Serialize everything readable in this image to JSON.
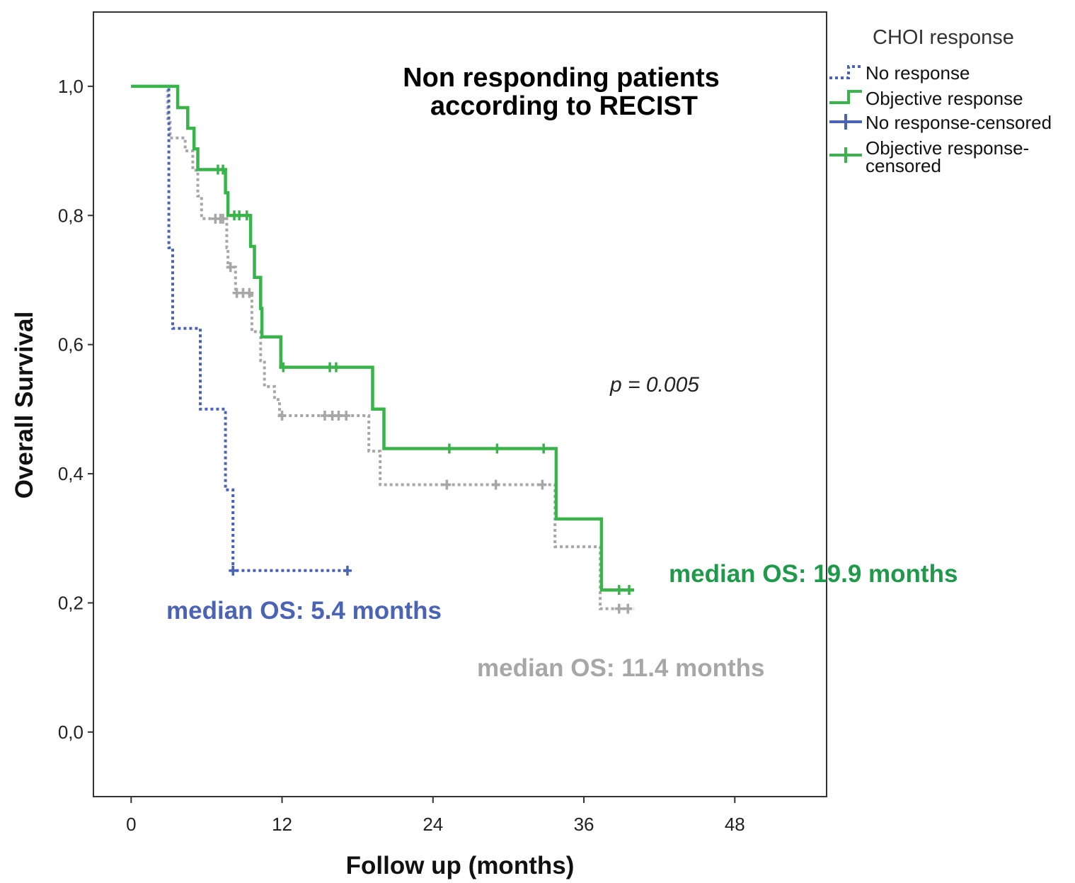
{
  "chart_data": {
    "type": "line",
    "subtype": "kaplan-meier",
    "title": "Non responding patients according to RECIST",
    "title_lines": [
      "Non responding patients",
      "according to RECIST"
    ],
    "xlabel": "Follow up (months)",
    "ylabel": "Overall Survival",
    "xlim": [
      -3,
      55.3
    ],
    "ylim": [
      -0.1,
      1.115
    ],
    "xticks": [
      0,
      12,
      24,
      36,
      48
    ],
    "xtick_labels": [
      "0",
      "12",
      "24",
      "36",
      "48"
    ],
    "yticks": [
      0,
      0.2,
      0.4,
      0.6,
      0.8,
      1.0
    ],
    "ytick_labels": [
      "0,0",
      "0,2",
      "0,4",
      "0,6",
      "0,8",
      "1,0"
    ],
    "grid": false,
    "legend": {
      "title": "CHOI response",
      "position": "right",
      "entries": [
        "No response",
        "Objective response",
        "No response-censored",
        "Objective response-censored"
      ],
      "entry_lines": [
        [
          "No response"
        ],
        [
          "Objective response"
        ],
        [
          "No response-censored"
        ],
        [
          "Objective response-",
          "censored"
        ]
      ]
    },
    "p_value": "p = 0.005",
    "series": [
      {
        "name": "No response",
        "color": "#4a63b5",
        "style": "dotted",
        "steps": [
          [
            0,
            1.0
          ],
          [
            3.0,
            1.0
          ],
          [
            3.0,
            0.875
          ],
          [
            3.0,
            0.75
          ],
          [
            3.3,
            0.75
          ],
          [
            3.3,
            0.625
          ],
          [
            5.5,
            0.625
          ],
          [
            5.5,
            0.5
          ],
          [
            7.5,
            0.5
          ],
          [
            7.5,
            0.375
          ],
          [
            8.1,
            0.375
          ],
          [
            8.1,
            0.25
          ],
          [
            17.2,
            0.25
          ]
        ],
        "censored": [
          [
            8.1,
            0.25
          ],
          [
            17.2,
            0.25
          ]
        ]
      },
      {
        "name": "Objective response",
        "color": "#38b44a",
        "style": "solid",
        "steps": [
          [
            0,
            1.0
          ],
          [
            3.7,
            1.0
          ],
          [
            3.7,
            0.967
          ],
          [
            4.5,
            0.967
          ],
          [
            4.5,
            0.935
          ],
          [
            5.0,
            0.935
          ],
          [
            5.0,
            0.903
          ],
          [
            5.3,
            0.903
          ],
          [
            5.3,
            0.871
          ],
          [
            7.5,
            0.871
          ],
          [
            7.5,
            0.835
          ],
          [
            7.7,
            0.835
          ],
          [
            7.7,
            0.8
          ],
          [
            9.5,
            0.8
          ],
          [
            9.5,
            0.752
          ],
          [
            9.8,
            0.752
          ],
          [
            9.8,
            0.704
          ],
          [
            10.3,
            0.704
          ],
          [
            10.3,
            0.656
          ],
          [
            10.4,
            0.656
          ],
          [
            10.4,
            0.612
          ],
          [
            11.9,
            0.612
          ],
          [
            11.9,
            0.565
          ],
          [
            19.2,
            0.565
          ],
          [
            19.2,
            0.5
          ],
          [
            20.1,
            0.5
          ],
          [
            20.1,
            0.439
          ],
          [
            33.8,
            0.439
          ],
          [
            33.8,
            0.33
          ],
          [
            37.4,
            0.33
          ],
          [
            37.4,
            0.22
          ],
          [
            40.0,
            0.22
          ]
        ],
        "censored": [
          [
            6.9,
            0.871
          ],
          [
            7.3,
            0.871
          ],
          [
            8.2,
            0.8
          ],
          [
            8.6,
            0.8
          ],
          [
            9.2,
            0.8
          ],
          [
            12.1,
            0.565
          ],
          [
            15.8,
            0.565
          ],
          [
            16.3,
            0.565
          ],
          [
            25.3,
            0.439
          ],
          [
            29.1,
            0.439
          ],
          [
            32.8,
            0.439
          ],
          [
            38.8,
            0.22
          ],
          [
            39.6,
            0.22
          ]
        ]
      },
      {
        "name": "",
        "color": "#a7a7a7",
        "style": "dotted",
        "steps": [
          [
            0,
            1.0
          ],
          [
            2.9,
            1.0
          ],
          [
            2.9,
            0.95
          ],
          [
            3.1,
            0.95
          ],
          [
            3.1,
            0.92
          ],
          [
            4.3,
            0.92
          ],
          [
            4.3,
            0.9
          ],
          [
            4.9,
            0.9
          ],
          [
            4.9,
            0.87
          ],
          [
            5.3,
            0.87
          ],
          [
            5.3,
            0.83
          ],
          [
            5.6,
            0.83
          ],
          [
            5.6,
            0.795
          ],
          [
            7.6,
            0.795
          ],
          [
            7.6,
            0.75
          ],
          [
            7.7,
            0.75
          ],
          [
            7.7,
            0.72
          ],
          [
            8.3,
            0.72
          ],
          [
            8.3,
            0.68
          ],
          [
            9.6,
            0.68
          ],
          [
            9.6,
            0.62
          ],
          [
            10.3,
            0.62
          ],
          [
            10.3,
            0.575
          ],
          [
            10.6,
            0.575
          ],
          [
            10.6,
            0.535
          ],
          [
            11.4,
            0.535
          ],
          [
            11.4,
            0.515
          ],
          [
            11.8,
            0.515
          ],
          [
            11.8,
            0.49
          ],
          [
            18.9,
            0.49
          ],
          [
            18.9,
            0.435
          ],
          [
            19.8,
            0.435
          ],
          [
            19.8,
            0.383
          ],
          [
            33.7,
            0.383
          ],
          [
            33.7,
            0.287
          ],
          [
            37.3,
            0.287
          ],
          [
            37.3,
            0.191
          ],
          [
            40.0,
            0.191
          ]
        ],
        "censored": [
          [
            6.7,
            0.795
          ],
          [
            7.1,
            0.795
          ],
          [
            7.3,
            0.795
          ],
          [
            7.9,
            0.72
          ],
          [
            8.4,
            0.68
          ],
          [
            8.9,
            0.68
          ],
          [
            9.4,
            0.68
          ],
          [
            12.0,
            0.49
          ],
          [
            15.4,
            0.49
          ],
          [
            16.0,
            0.49
          ],
          [
            16.5,
            0.49
          ],
          [
            17.1,
            0.49
          ],
          [
            25.1,
            0.383
          ],
          [
            29.0,
            0.383
          ],
          [
            32.7,
            0.383
          ],
          [
            38.8,
            0.191
          ],
          [
            39.5,
            0.191
          ]
        ]
      }
    ],
    "annotations": [
      {
        "text": "median OS: 5.4 months",
        "color": "#4a63b5",
        "x": 2.8,
        "y": 0.2
      },
      {
        "text": "median OS: 19.9 months",
        "color": "#1f9a4a",
        "x": 40.4,
        "y": 0.25
      },
      {
        "text": "median OS: 11.4 months",
        "color": "#a7a7a7",
        "x": 26.0,
        "y": 0.12
      }
    ]
  }
}
